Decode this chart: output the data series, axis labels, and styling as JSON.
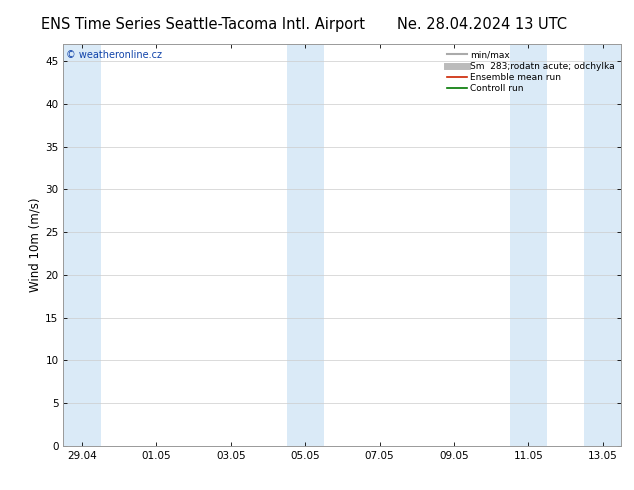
{
  "title_left": "ENS Time Series Seattle-Tacoma Intl. Airport",
  "title_right": "Ne. 28.04.2024 13 UTC",
  "ylabel": "Wind 10m (m/s)",
  "ylim": [
    0,
    47
  ],
  "yticks": [
    0,
    5,
    10,
    15,
    20,
    25,
    30,
    35,
    40,
    45
  ],
  "xlim_start": -0.5,
  "xlim_end": 14.5,
  "xtick_positions": [
    0,
    2,
    4,
    6,
    8,
    10,
    12,
    14
  ],
  "xtick_labels": [
    "29.04",
    "01.05",
    "03.05",
    "05.05",
    "07.05",
    "09.05",
    "11.05",
    "13.05"
  ],
  "shade_bands": [
    {
      "x_start": -0.5,
      "x_end": 0.5
    },
    {
      "x_start": 5.5,
      "x_end": 6.5
    },
    {
      "x_start": 11.5,
      "x_end": 12.5
    },
    {
      "x_start": 13.5,
      "x_end": 14.5
    }
  ],
  "shade_color": "#daeaf7",
  "background_color": "#ffffff",
  "grid_color": "#cccccc",
  "watermark": "© weatheronline.cz",
  "watermark_color": "#1144aa",
  "legend_entries": [
    {
      "label": "min/max",
      "color": "#aaaaaa",
      "lw": 1.5
    },
    {
      "label": "Sm  283;rodatn acute; odchylka",
      "color": "#bbbbbb",
      "lw": 5
    },
    {
      "label": "Ensemble mean run",
      "color": "#cc2200",
      "lw": 1.2
    },
    {
      "label": "Controll run",
      "color": "#007700",
      "lw": 1.2
    }
  ],
  "title_fontsize": 10.5,
  "axis_fontsize": 8.5,
  "tick_fontsize": 7.5
}
